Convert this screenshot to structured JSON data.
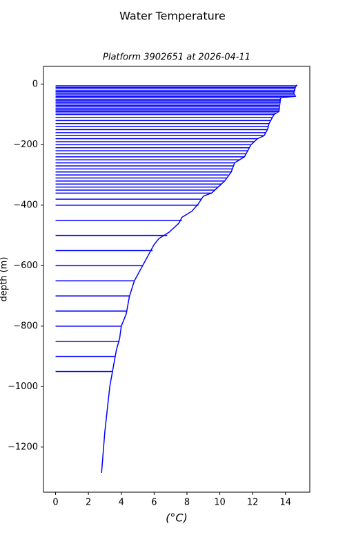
{
  "chart_data": {
    "type": "profile",
    "title": "Water Temperature",
    "subtitle": "Platform 3902651 at 2026-04-11",
    "xlabel": "(°C)",
    "ylabel": "depth (m)",
    "color": "#0000ff",
    "xlim": [
      -0.737,
      15.48
    ],
    "ylim": [
      -1349,
      59
    ],
    "xticks": [
      0,
      2,
      4,
      6,
      8,
      10,
      12,
      14
    ],
    "yticks": [
      {
        "value": -1200,
        "label": "−1200"
      },
      {
        "value": -1000,
        "label": "−1000"
      },
      {
        "value": -800,
        "label": "−800"
      },
      {
        "value": -600,
        "label": "−600"
      },
      {
        "value": -400,
        "label": "−400"
      },
      {
        "value": -200,
        "label": "−200"
      },
      0
    ],
    "profile": {
      "x": [
        14.7,
        14.6,
        14.5,
        14.6,
        13.7,
        13.6,
        13.3,
        13.1,
        13.0,
        12.9,
        12.7,
        12.3,
        11.9,
        11.5,
        10.9,
        10.7,
        10.3,
        9.9,
        9.5,
        9.0,
        8.7,
        8.3,
        7.7,
        7.5,
        6.9,
        6.3,
        6.0,
        5.7,
        5.3,
        4.8,
        4.5,
        4.3,
        4.0,
        3.9,
        3.7,
        3.5,
        3.3,
        3.0,
        2.8
      ],
      "y": [
        -2,
        -10,
        -30,
        -40,
        -45,
        -90,
        -100,
        -120,
        -130,
        -150,
        -170,
        -180,
        -200,
        -240,
        -260,
        -290,
        -320,
        -340,
        -360,
        -370,
        -395,
        -420,
        -440,
        -460,
        -490,
        -510,
        -530,
        -560,
        -600,
        -650,
        -700,
        -760,
        -800,
        -840,
        -880,
        -940,
        -1000,
        -1150,
        -1285
      ]
    },
    "levels": {
      "depth": [
        -5,
        -10,
        -15,
        -20,
        -25,
        -30,
        -35,
        -40,
        -45,
        -50,
        -55,
        -60,
        -65,
        -70,
        -75,
        -80,
        -85,
        -90,
        -95,
        -100,
        -110,
        -120,
        -130,
        -140,
        -150,
        -160,
        -170,
        -180,
        -190,
        -200,
        -210,
        -220,
        -230,
        -240,
        -250,
        -260,
        -270,
        -280,
        -290,
        -300,
        -310,
        -320,
        -330,
        -340,
        -350,
        -360,
        -380,
        -400,
        -450,
        -500,
        -550,
        -600,
        -650,
        -700,
        -750,
        -800,
        -850,
        -900,
        -950
      ],
      "temp": [
        14.7,
        14.6,
        14.6,
        14.6,
        14.5,
        14.5,
        14.5,
        14.6,
        13.7,
        13.7,
        13.7,
        13.7,
        13.6,
        13.6,
        13.6,
        13.6,
        13.6,
        13.6,
        13.4,
        13.3,
        13.2,
        13.1,
        13.0,
        12.95,
        12.9,
        12.8,
        12.7,
        12.3,
        12.1,
        11.9,
        11.8,
        11.7,
        11.6,
        11.5,
        11.2,
        10.9,
        10.8,
        10.75,
        10.7,
        10.5,
        10.4,
        10.3,
        10.1,
        9.9,
        9.7,
        9.5,
        8.9,
        8.7,
        7.7,
        6.8,
        5.9,
        5.3,
        4.8,
        4.5,
        4.3,
        4.0,
        3.9,
        3.6,
        3.5
      ]
    }
  }
}
